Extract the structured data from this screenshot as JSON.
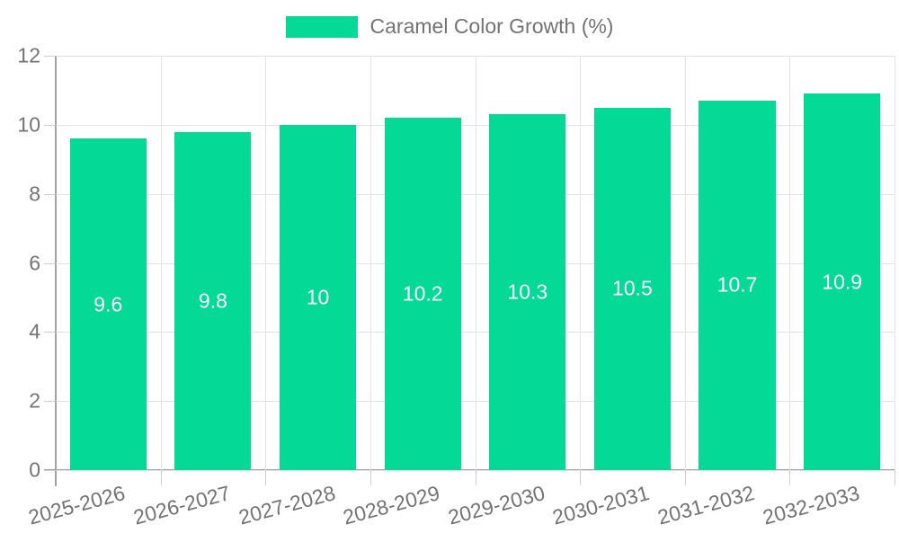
{
  "legend": {
    "label": "Caramel Color Growth (%)"
  },
  "colors": {
    "bar": "#04da96",
    "grid": "#e3e3e3",
    "axis": "#a2a2a2",
    "tick": "#cfcfcf",
    "label": "#737373",
    "value_label": "#ffffff",
    "background": "#ffffff"
  },
  "chart_data": {
    "type": "bar",
    "title": "Caramel Color Growth (%)",
    "categories": [
      "2025-2026",
      "2026-2027",
      "2027-2028",
      "2028-2029",
      "2029-2030",
      "2030-2031",
      "2031-2032",
      "2032-2033"
    ],
    "values": [
      9.6,
      9.8,
      10,
      10.2,
      10.3,
      10.5,
      10.7,
      10.9
    ],
    "bar_labels": [
      "9.6",
      "9.8",
      "10",
      "10.2",
      "10.3",
      "10.5",
      "10.7",
      "10.9"
    ],
    "xlabel": "",
    "ylabel": "",
    "ylim": [
      0,
      12
    ],
    "y_ticks": [
      0,
      2,
      4,
      6,
      8,
      10,
      12
    ],
    "grid": true,
    "legend_position": "top",
    "x_label_rotation_deg": -15
  }
}
